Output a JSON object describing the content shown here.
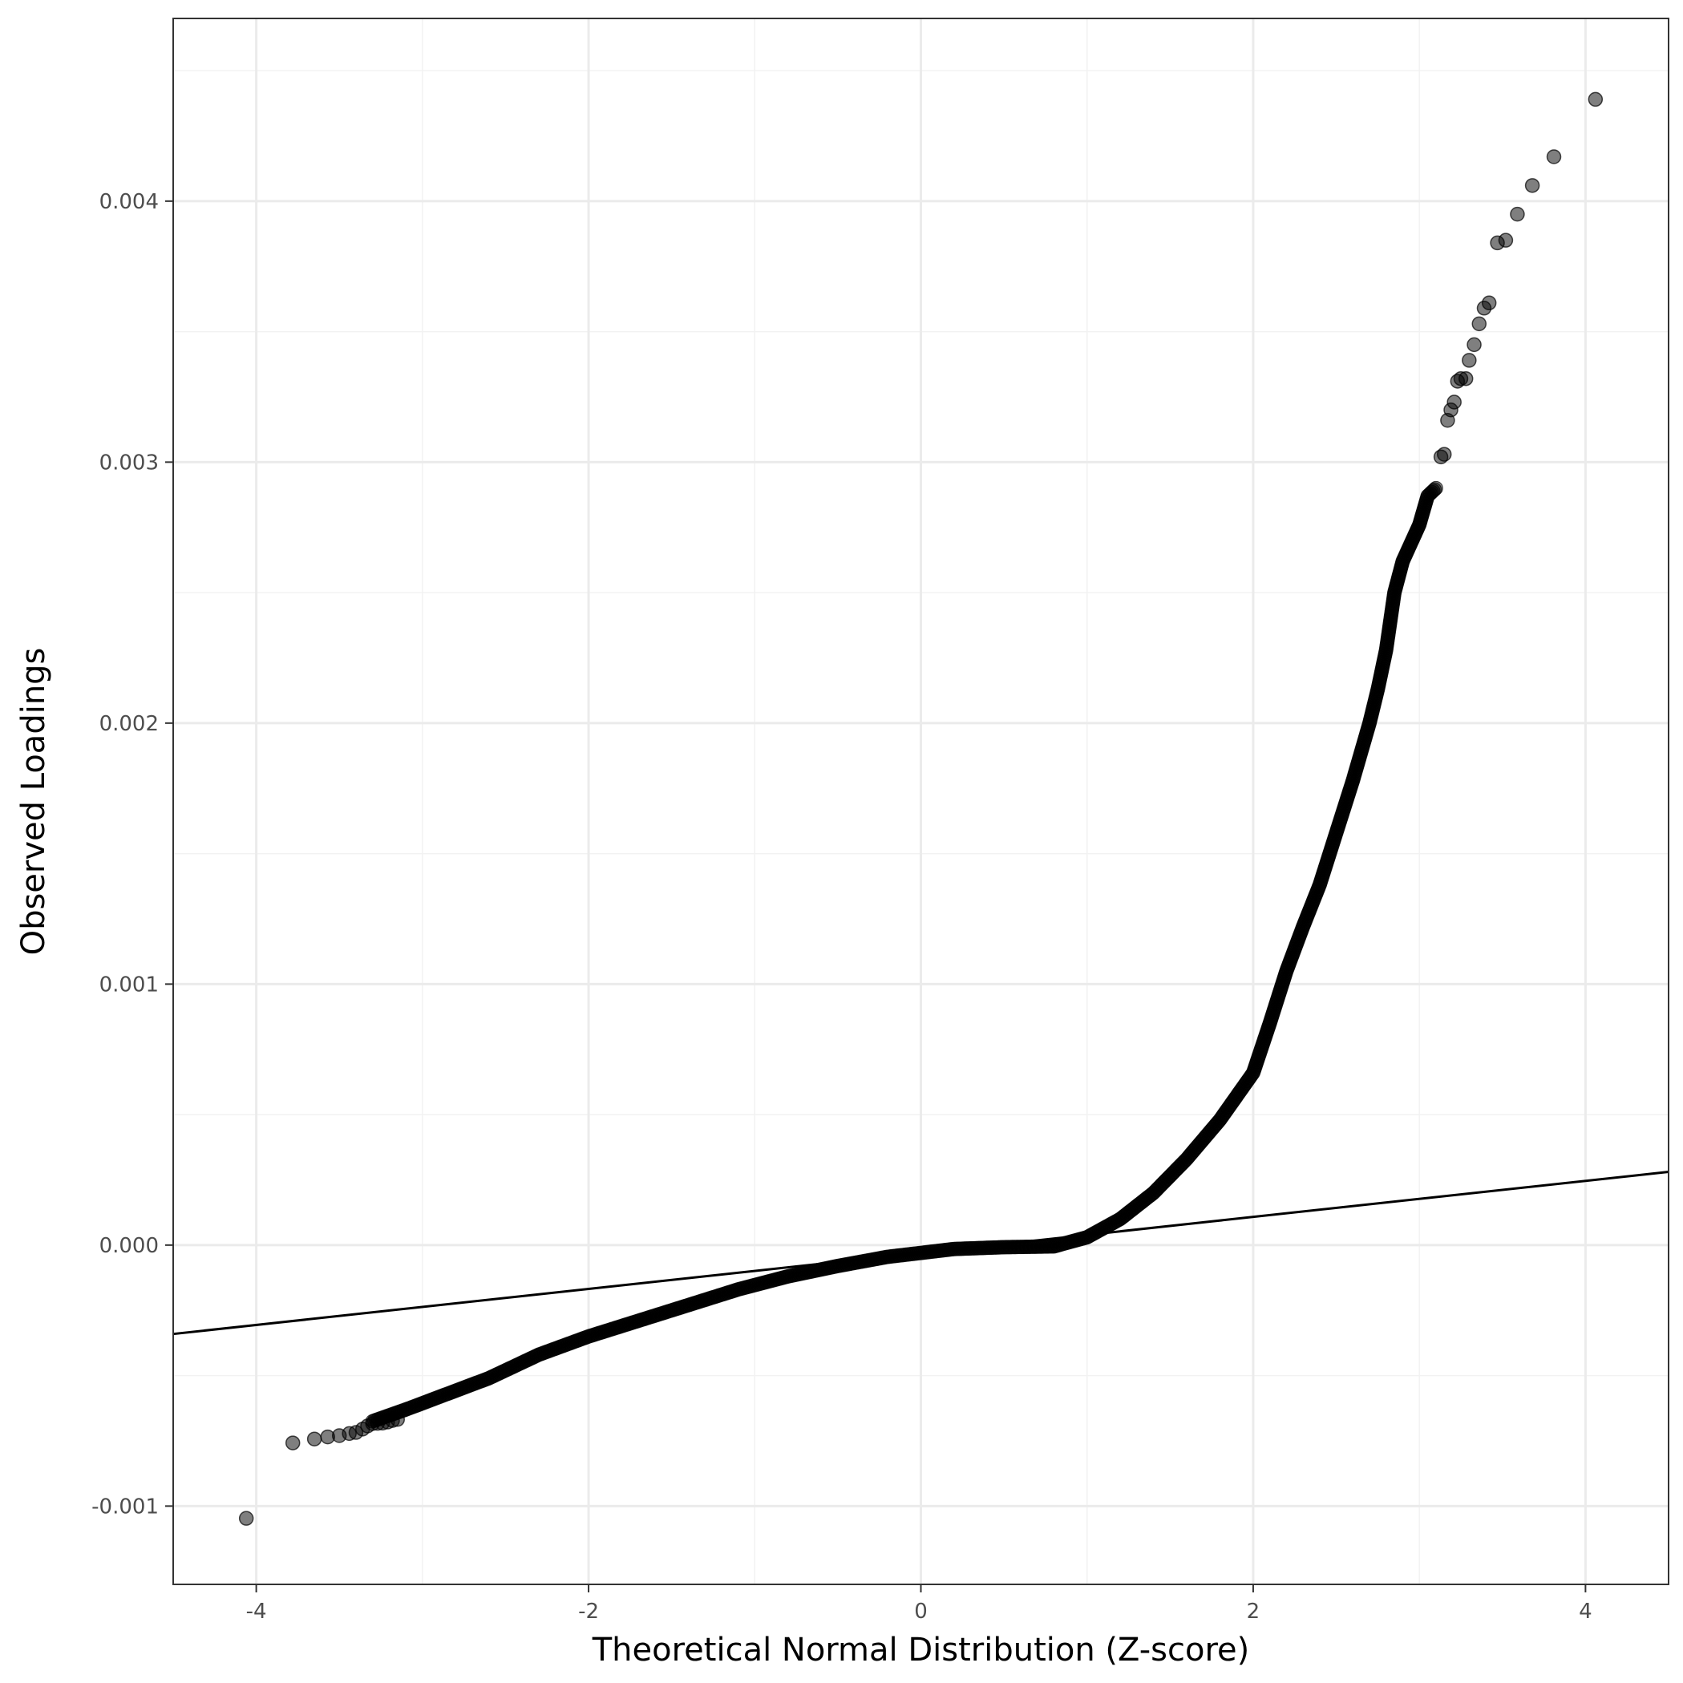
{
  "chart_data": {
    "type": "scatter",
    "title": "",
    "xlabel": "Theoretical Normal Distribution (Z-score)",
    "ylabel": "Observed Loadings",
    "xlim": [
      -4.5,
      4.5
    ],
    "ylim": [
      -0.0013,
      0.0047
    ],
    "x_ticks": [
      -4,
      -2,
      0,
      2,
      4
    ],
    "x_tick_labels": [
      "-4",
      "-2",
      "0",
      "2",
      "4"
    ],
    "y_ticks": [
      -0.001,
      0.0,
      0.001,
      0.002,
      0.003,
      0.004
    ],
    "y_tick_labels": [
      "-0.001",
      "0.000",
      "0.001",
      "0.002",
      "0.003",
      "0.004"
    ],
    "grid": true,
    "legend": "none",
    "point_color": "#000000",
    "point_opacity": 0.5,
    "reference_line": {
      "intercept": -3e-05,
      "slope": 6.9e-05,
      "color": "#000000"
    },
    "curve_knots": [
      [
        -3.3,
        -0.000675
      ],
      [
        -3.1,
        -0.00063
      ],
      [
        -2.9,
        -0.000582
      ],
      [
        -2.6,
        -0.00051
      ],
      [
        -2.3,
        -0.00042
      ],
      [
        -2.0,
        -0.00035
      ],
      [
        -1.7,
        -0.00029
      ],
      [
        -1.4,
        -0.00023
      ],
      [
        -1.1,
        -0.00017
      ],
      [
        -0.8,
        -0.00012
      ],
      [
        -0.5,
        -8e-05
      ],
      [
        -0.2,
        -4.5e-05
      ],
      [
        0.0,
        -3e-05
      ],
      [
        0.2,
        -1.5e-05
      ],
      [
        0.5,
        -8e-06
      ],
      [
        0.8,
        -5e-06
      ],
      [
        1.0,
        3e-05
      ],
      [
        1.2,
        0.0001
      ],
      [
        1.4,
        0.0002
      ],
      [
        1.6,
        0.00033
      ],
      [
        1.8,
        0.00048
      ],
      [
        2.0,
        0.00066
      ],
      [
        2.1,
        0.00085
      ],
      [
        2.2,
        0.00105
      ],
      [
        2.3,
        0.00122
      ],
      [
        2.4,
        0.00138
      ],
      [
        2.5,
        0.00158
      ],
      [
        2.6,
        0.00178
      ],
      [
        2.7,
        0.002
      ],
      [
        2.75,
        0.00213
      ],
      [
        2.8,
        0.00228
      ],
      [
        2.85,
        0.0025
      ],
      [
        2.9,
        0.00262
      ],
      [
        3.0,
        0.00276
      ],
      [
        3.05,
        0.00287
      ],
      [
        3.1,
        0.0029
      ]
    ],
    "points": [
      [
        -4.06,
        -0.001047
      ],
      [
        -3.78,
        -0.000758
      ],
      [
        -3.65,
        -0.000743
      ],
      [
        -3.57,
        -0.000735
      ],
      [
        -3.5,
        -0.00073
      ],
      [
        -3.44,
        -0.000722
      ],
      [
        -3.4,
        -0.000718
      ],
      [
        -3.36,
        -0.000705
      ],
      [
        -3.33,
        -0.000693
      ],
      [
        -3.3,
        -0.000684
      ],
      [
        -3.27,
        -0.000683
      ],
      [
        -3.24,
        -0.000682
      ],
      [
        -3.21,
        -0.000678
      ],
      [
        -3.18,
        -0.000672
      ],
      [
        -3.15,
        -0.000668
      ],
      [
        3.13,
        0.00302
      ],
      [
        3.15,
        0.00303
      ],
      [
        3.17,
        0.00316
      ],
      [
        3.19,
        0.0032
      ],
      [
        3.21,
        0.00323
      ],
      [
        3.23,
        0.00331
      ],
      [
        3.25,
        0.00332
      ],
      [
        3.28,
        0.00332
      ],
      [
        3.3,
        0.00339
      ],
      [
        3.33,
        0.00345
      ],
      [
        3.36,
        0.00353
      ],
      [
        3.39,
        0.00359
      ],
      [
        3.42,
        0.00361
      ],
      [
        3.47,
        0.00384
      ],
      [
        3.52,
        0.00385
      ],
      [
        3.59,
        0.00395
      ],
      [
        3.68,
        0.00406
      ],
      [
        3.81,
        0.00417
      ],
      [
        4.06,
        0.00439
      ]
    ]
  }
}
